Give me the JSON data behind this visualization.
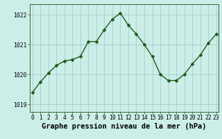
{
  "x": [
    0,
    1,
    2,
    3,
    4,
    5,
    6,
    7,
    8,
    9,
    10,
    11,
    12,
    13,
    14,
    15,
    16,
    17,
    18,
    19,
    20,
    21,
    22,
    23
  ],
  "y": [
    1019.4,
    1019.75,
    1020.05,
    1020.3,
    1020.45,
    1020.5,
    1020.6,
    1021.1,
    1021.1,
    1021.5,
    1021.85,
    1022.05,
    1021.65,
    1021.35,
    1021.0,
    1020.6,
    1020.0,
    1019.8,
    1019.8,
    1020.0,
    1020.35,
    1020.65,
    1021.05,
    1021.35
  ],
  "line_color": "#1a5c1a",
  "marker_color": "#1a5c1a",
  "bg_color": "#cceee8",
  "grid_color": "#aaccc8",
  "ylabel_ticks": [
    1019,
    1020,
    1021,
    1022
  ],
  "xlabel_ticks": [
    0,
    1,
    2,
    3,
    4,
    5,
    6,
    7,
    8,
    9,
    10,
    11,
    12,
    13,
    14,
    15,
    16,
    17,
    18,
    19,
    20,
    21,
    22,
    23
  ],
  "ylim": [
    1018.75,
    1022.35
  ],
  "xlim": [
    -0.3,
    23.3
  ],
  "xlabel": "Graphe pression niveau de la mer (hPa)",
  "xlabel_fontsize": 7.5,
  "tick_fontsize": 5.8,
  "line_width": 1.0,
  "marker_size": 2.5
}
